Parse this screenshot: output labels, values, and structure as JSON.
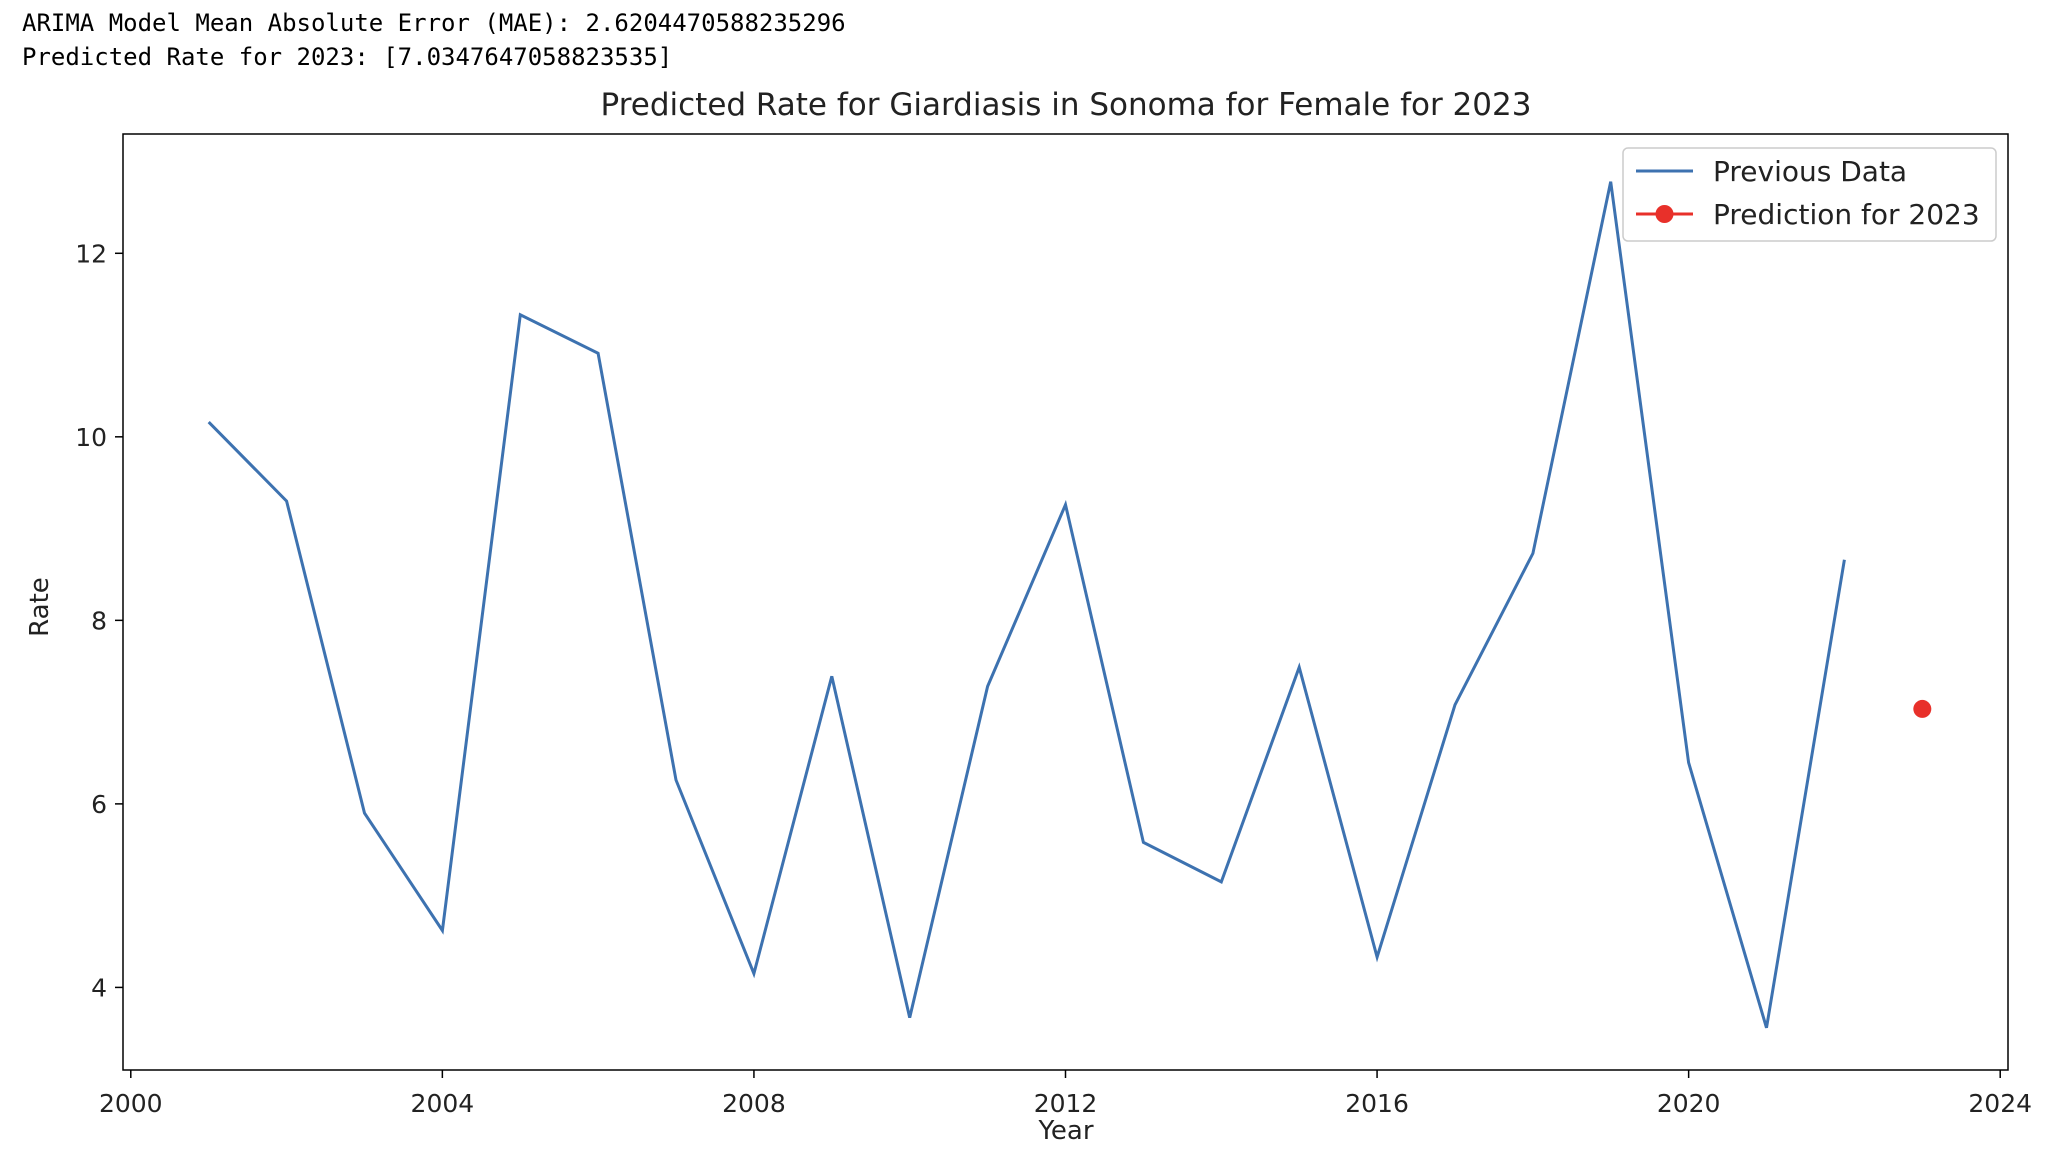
{
  "console": {
    "line1": "ARIMA Model Mean Absolute Error (MAE): 2.6204470588235296",
    "line2": "Predicted Rate for 2023: [7.0347647058823535]"
  },
  "chart_data": {
    "type": "line",
    "title": "Predicted Rate for Giardiasis in Sonoma for Female for 2023",
    "xlabel": "Year",
    "ylabel": "Rate",
    "xlim": [
      1999.9,
      2024.1
    ],
    "ylim": [
      3.1,
      13.3
    ],
    "xticks": [
      2000,
      2004,
      2008,
      2012,
      2016,
      2020,
      2024
    ],
    "yticks": [
      4,
      6,
      8,
      10,
      12
    ],
    "grid": false,
    "legend_position": "top-right",
    "series": [
      {
        "name": "Previous Data",
        "color": "#3d72b0",
        "x": [
          2001,
          2002,
          2003,
          2004,
          2005,
          2006,
          2007,
          2008,
          2009,
          2010,
          2011,
          2012,
          2013,
          2014,
          2015,
          2016,
          2017,
          2018,
          2019,
          2020,
          2021,
          2022
        ],
        "values": [
          10.16,
          9.3,
          5.9,
          4.62,
          11.33,
          10.91,
          6.26,
          4.15,
          7.39,
          3.67,
          7.28,
          9.26,
          5.58,
          5.15,
          7.49,
          4.33,
          7.08,
          8.73,
          12.78,
          6.45,
          3.56,
          8.66
        ]
      },
      {
        "name": "Prediction for 2023",
        "color": "#e8302a",
        "x": [
          2023
        ],
        "values": [
          7.0347647058823535
        ]
      }
    ]
  }
}
